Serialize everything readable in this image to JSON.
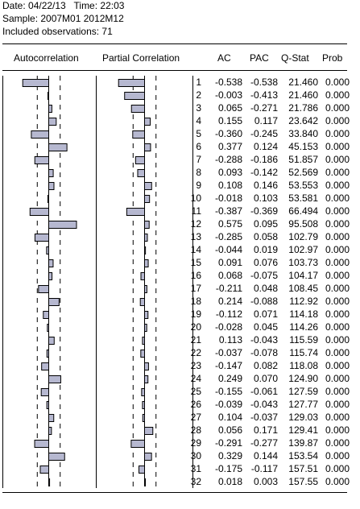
{
  "header_info": {
    "date_line": "Date: 04/22/13   Time: 22:03",
    "sample_line": "Sample: 2007M01 2012M12",
    "obs_line": "Included observations: 71"
  },
  "columns": {
    "autocorrelation": "Autocorrelation",
    "partial_correlation": "Partial Correlation",
    "ac": "AC",
    "pac": "PAC",
    "qstat": "Q-Stat",
    "prob": "Prob"
  },
  "colors": {
    "bar_fill": "#b6b8d0",
    "bar_stroke": "#000000",
    "background": "#ffffff"
  },
  "chart_data": {
    "type": "table",
    "confidence_bound": 0.237,
    "rows": [
      {
        "lag": "1",
        "ac": "-0.538",
        "pac": "-0.538",
        "qstat": "21.460",
        "prob": "0.000"
      },
      {
        "lag": "2",
        "ac": "-0.003",
        "pac": "-0.413",
        "qstat": "21.460",
        "prob": "0.000"
      },
      {
        "lag": "3",
        "ac": "0.065",
        "pac": "-0.271",
        "qstat": "21.786",
        "prob": "0.000"
      },
      {
        "lag": "4",
        "ac": "0.155",
        "pac": "0.117",
        "qstat": "23.642",
        "prob": "0.000"
      },
      {
        "lag": "5",
        "ac": "-0.360",
        "pac": "-0.245",
        "qstat": "33.840",
        "prob": "0.000"
      },
      {
        "lag": "6",
        "ac": "0.377",
        "pac": "0.124",
        "qstat": "45.153",
        "prob": "0.000"
      },
      {
        "lag": "7",
        "ac": "-0.288",
        "pac": "-0.186",
        "qstat": "51.857",
        "prob": "0.000"
      },
      {
        "lag": "8",
        "ac": "0.093",
        "pac": "-0.142",
        "qstat": "52.569",
        "prob": "0.000"
      },
      {
        "lag": "9",
        "ac": "0.108",
        "pac": "0.146",
        "qstat": "53.553",
        "prob": "0.000"
      },
      {
        "lag": "10",
        "ac": "-0.018",
        "pac": "0.103",
        "qstat": "53.581",
        "prob": "0.000"
      },
      {
        "lag": "11",
        "ac": "-0.387",
        "pac": "-0.369",
        "qstat": "66.494",
        "prob": "0.000"
      },
      {
        "lag": "12",
        "ac": "0.575",
        "pac": "0.095",
        "qstat": "95.508",
        "prob": "0.000"
      },
      {
        "lag": "13",
        "ac": "-0.285",
        "pac": "0.058",
        "qstat": "102.79",
        "prob": "0.000"
      },
      {
        "lag": "14",
        "ac": "-0.044",
        "pac": "0.019",
        "qstat": "102.97",
        "prob": "0.000"
      },
      {
        "lag": "15",
        "ac": "0.091",
        "pac": "0.076",
        "qstat": "103.73",
        "prob": "0.000"
      },
      {
        "lag": "16",
        "ac": "0.068",
        "pac": "-0.075",
        "qstat": "104.17",
        "prob": "0.000"
      },
      {
        "lag": "17",
        "ac": "-0.211",
        "pac": "0.048",
        "qstat": "108.45",
        "prob": "0.000"
      },
      {
        "lag": "18",
        "ac": "0.214",
        "pac": "-0.088",
        "qstat": "112.92",
        "prob": "0.000"
      },
      {
        "lag": "19",
        "ac": "-0.112",
        "pac": "0.071",
        "qstat": "114.18",
        "prob": "0.000"
      },
      {
        "lag": "20",
        "ac": "-0.028",
        "pac": "0.045",
        "qstat": "114.26",
        "prob": "0.000"
      },
      {
        "lag": "21",
        "ac": "0.113",
        "pac": "-0.043",
        "qstat": "115.59",
        "prob": "0.000"
      },
      {
        "lag": "22",
        "ac": "-0.037",
        "pac": "-0.078",
        "qstat": "115.74",
        "prob": "0.000"
      },
      {
        "lag": "23",
        "ac": "-0.147",
        "pac": "0.082",
        "qstat": "118.08",
        "prob": "0.000"
      },
      {
        "lag": "24",
        "ac": "0.249",
        "pac": "0.070",
        "qstat": "124.90",
        "prob": "0.000"
      },
      {
        "lag": "25",
        "ac": "-0.155",
        "pac": "-0.061",
        "qstat": "127.59",
        "prob": "0.000"
      },
      {
        "lag": "26",
        "ac": "-0.039",
        "pac": "-0.043",
        "qstat": "127.77",
        "prob": "0.000"
      },
      {
        "lag": "27",
        "ac": "0.104",
        "pac": "-0.037",
        "qstat": "129.03",
        "prob": "0.000"
      },
      {
        "lag": "28",
        "ac": "0.056",
        "pac": "0.171",
        "qstat": "129.41",
        "prob": "0.000"
      },
      {
        "lag": "29",
        "ac": "-0.291",
        "pac": "-0.277",
        "qstat": "139.87",
        "prob": "0.000"
      },
      {
        "lag": "30",
        "ac": "0.329",
        "pac": "0.144",
        "qstat": "153.54",
        "prob": "0.000"
      },
      {
        "lag": "31",
        "ac": "-0.175",
        "pac": "-0.117",
        "qstat": "157.51",
        "prob": "0.000"
      },
      {
        "lag": "32",
        "ac": "0.018",
        "pac": "0.003",
        "qstat": "157.55",
        "prob": "0.000"
      }
    ]
  }
}
